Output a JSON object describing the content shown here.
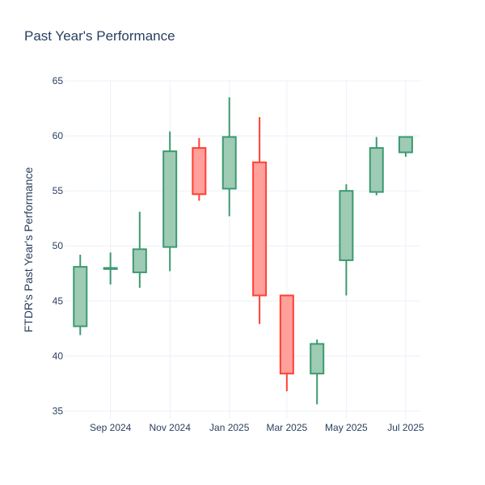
{
  "chart_data": {
    "type": "candlestick",
    "title": "Past Year's Performance",
    "xlabel": "",
    "ylabel": "FTDR's Past Year's Performance",
    "ylim": [
      34.3,
      65
    ],
    "yticks": [
      35,
      40,
      45,
      50,
      55,
      60,
      65
    ],
    "xticks": [
      {
        "label": "Sep 2024",
        "date": "2024-09-01"
      },
      {
        "label": "Nov 2024",
        "date": "2024-11-01"
      },
      {
        "label": "Jan 2025",
        "date": "2025-01-01"
      },
      {
        "label": "Mar 2025",
        "date": "2025-03-01"
      },
      {
        "label": "May 2025",
        "date": "2025-05-01"
      },
      {
        "label": "Jul 2025",
        "date": "2025-07-01"
      }
    ],
    "xlim": [
      "2024-07-16",
      "2025-07-16"
    ],
    "grid": true,
    "colors": {
      "increasing_line": "#3d9970",
      "increasing_fill": "#9ecbb4",
      "decreasing_line": "#ff4136",
      "decreasing_fill": "#ffa09b",
      "text": "#2a3f5f",
      "grid": "#ebf0f8"
    },
    "candles": [
      {
        "date": "2024-08-01",
        "open": 42.7,
        "high": 49.2,
        "low": 41.9,
        "close": 48.1
      },
      {
        "date": "2024-09-01",
        "open": 47.9,
        "high": 49.4,
        "low": 46.5,
        "close": 48.0
      },
      {
        "date": "2024-10-01",
        "open": 47.6,
        "high": 53.1,
        "low": 46.2,
        "close": 49.7
      },
      {
        "date": "2024-11-01",
        "open": 49.9,
        "high": 60.4,
        "low": 47.7,
        "close": 58.6
      },
      {
        "date": "2024-12-01",
        "open": 58.9,
        "high": 59.8,
        "low": 54.1,
        "close": 54.7
      },
      {
        "date": "2025-01-01",
        "open": 55.2,
        "high": 63.5,
        "low": 52.7,
        "close": 59.9
      },
      {
        "date": "2025-02-01",
        "open": 57.6,
        "high": 61.7,
        "low": 42.9,
        "close": 45.5
      },
      {
        "date": "2025-03-01",
        "open": 45.5,
        "high": 45.5,
        "low": 36.8,
        "close": 38.4
      },
      {
        "date": "2025-04-01",
        "open": 38.4,
        "high": 41.5,
        "low": 35.6,
        "close": 41.1
      },
      {
        "date": "2025-05-01",
        "open": 48.7,
        "high": 55.6,
        "low": 45.5,
        "close": 55.0
      },
      {
        "date": "2025-06-01",
        "open": 54.9,
        "high": 59.9,
        "low": 54.6,
        "close": 58.9
      },
      {
        "date": "2025-07-01",
        "open": 58.5,
        "high": 59.9,
        "low": 58.1,
        "close": 59.9
      }
    ]
  }
}
